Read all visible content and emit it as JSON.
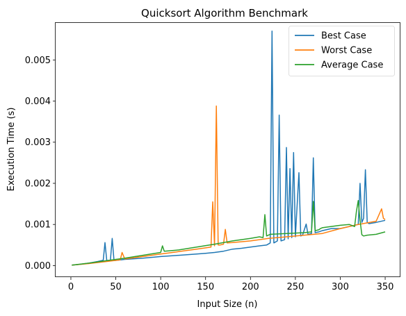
{
  "chart_data": {
    "type": "line",
    "title": "Quicksort Algorithm Benchmark",
    "xlabel": "Input Size (n)",
    "ylabel": "Execution Time (s)",
    "xlim": [
      -17,
      367
    ],
    "ylim": [
      -0.00028,
      0.0059
    ],
    "xticks": [
      0,
      50,
      100,
      150,
      200,
      250,
      300,
      350
    ],
    "xtick_labels": [
      "0",
      "50",
      "100",
      "150",
      "200",
      "250",
      "300",
      "350"
    ],
    "yticks": [
      0.0,
      0.001,
      0.002,
      0.003,
      0.004,
      0.005
    ],
    "ytick_labels": [
      "0.000",
      "0.001",
      "0.002",
      "0.003",
      "0.004",
      "0.005"
    ],
    "grid": false,
    "legend_position": "upper right",
    "series": [
      {
        "name": "Best Case",
        "color": "#1f77b4",
        "x": [
          1,
          10,
          20,
          30,
          36,
          38,
          40,
          44,
          46,
          48,
          60,
          80,
          100,
          120,
          140,
          150,
          160,
          170,
          180,
          190,
          200,
          210,
          218,
          222,
          224,
          226,
          230,
          232,
          234,
          238,
          240,
          242,
          244,
          246,
          248,
          250,
          254,
          256,
          258,
          262,
          264,
          268,
          270,
          272,
          276,
          280,
          290,
          300,
          310,
          320,
          322,
          324,
          326,
          328,
          330,
          332,
          340,
          350
        ],
        "y": [
          1e-05,
          3e-05,
          6e-05,
          0.0001,
          0.00013,
          0.00056,
          0.00012,
          0.00013,
          0.00066,
          0.00012,
          0.00015,
          0.00018,
          0.00022,
          0.00025,
          0.00028,
          0.0003,
          0.00032,
          0.00035,
          0.0004,
          0.00042,
          0.00045,
          0.00048,
          0.0005,
          0.00055,
          0.0057,
          0.00055,
          0.0006,
          0.00366,
          0.0006,
          0.00063,
          0.00287,
          0.00065,
          0.00236,
          0.00068,
          0.00275,
          0.0007,
          0.00226,
          0.00072,
          0.00074,
          0.00101,
          0.00076,
          0.00078,
          0.00262,
          0.0008,
          0.00082,
          0.00085,
          0.0009,
          0.0009,
          0.00095,
          0.001,
          0.002,
          0.00105,
          0.00115,
          0.00233,
          0.00105,
          0.00102,
          0.00105,
          0.0011
        ]
      },
      {
        "name": "Worst Case",
        "color": "#ff7f0e",
        "x": [
          1,
          20,
          40,
          55,
          57,
          60,
          80,
          100,
          120,
          140,
          156,
          158,
          160,
          162,
          164,
          166,
          170,
          172,
          174,
          180,
          200,
          220,
          240,
          260,
          280,
          300,
          320,
          340,
          346,
          348,
          350
        ],
        "y": [
          1e-05,
          5e-05,
          0.0001,
          0.00014,
          0.00032,
          0.00016,
          0.00022,
          0.00028,
          0.00034,
          0.0004,
          0.00045,
          0.00155,
          0.00048,
          0.00388,
          0.0005,
          0.0005,
          0.00052,
          0.00088,
          0.00055,
          0.00056,
          0.0006,
          0.00066,
          0.0007,
          0.00074,
          0.00078,
          0.0009,
          0.001,
          0.00108,
          0.00138,
          0.00115,
          0.00112
        ]
      },
      {
        "name": "Average Case",
        "color": "#2ca02c",
        "x": [
          1,
          20,
          40,
          60,
          80,
          100,
          102,
          104,
          120,
          140,
          160,
          180,
          200,
          210,
          214,
          216,
          218,
          220,
          222,
          240,
          260,
          268,
          270,
          272,
          276,
          278,
          280,
          300,
          310,
          316,
          318,
          320,
          322,
          324,
          326,
          330,
          340,
          350
        ],
        "y": [
          1e-05,
          6e-05,
          0.00012,
          0.00018,
          0.00025,
          0.00032,
          0.00048,
          0.00035,
          0.00038,
          0.00045,
          0.00052,
          0.0006,
          0.00066,
          0.0007,
          0.00068,
          0.00124,
          0.00072,
          0.00074,
          0.00076,
          0.00078,
          0.0008,
          0.00082,
          0.00156,
          0.00085,
          0.00087,
          0.0009,
          0.00092,
          0.00098,
          0.001,
          0.00095,
          0.00132,
          0.00158,
          0.0011,
          0.00075,
          0.00072,
          0.00074,
          0.00076,
          0.00082
        ]
      }
    ]
  }
}
